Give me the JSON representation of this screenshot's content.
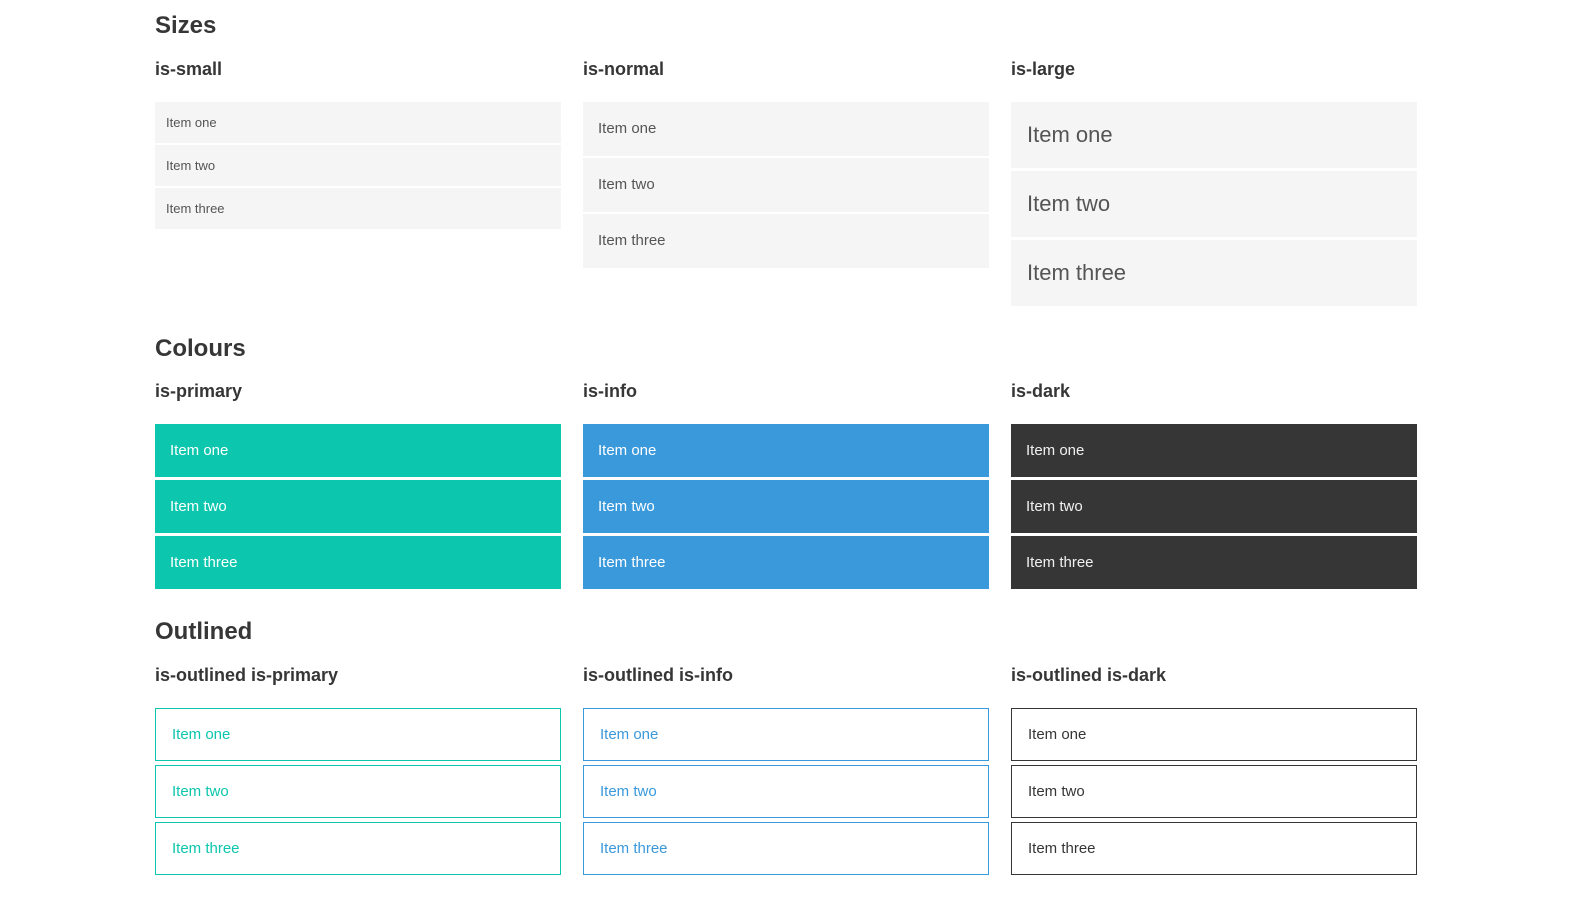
{
  "colors": {
    "primary": "#0cc6ad",
    "info": "#3a99db",
    "dark": "#363636",
    "item_background_light": "#f5f5f5",
    "item_text_gray": "#555555",
    "heading_text": "#363636",
    "item_text_on_color": "#ffffff",
    "page_background": "#ffffff"
  },
  "sections": [
    {
      "title": "Sizes",
      "groups": [
        {
          "label": "is-small",
          "items": [
            "Item one",
            "Item two",
            "Item three"
          ]
        },
        {
          "label": "is-normal",
          "items": [
            "Item one",
            "Item two",
            "Item three"
          ]
        },
        {
          "label": "is-large",
          "items": [
            "Item one",
            "Item two",
            "Item three"
          ]
        }
      ]
    },
    {
      "title": "Colours",
      "groups": [
        {
          "label": "is-primary",
          "items": [
            "Item one",
            "Item two",
            "Item three"
          ]
        },
        {
          "label": "is-info",
          "items": [
            "Item one",
            "Item two",
            "Item three"
          ]
        },
        {
          "label": "is-dark",
          "items": [
            "Item one",
            "Item two",
            "Item three"
          ]
        }
      ]
    },
    {
      "title": "Outlined",
      "groups": [
        {
          "label": "is-outlined is-primary",
          "items": [
            "Item one",
            "Item two",
            "Item three"
          ]
        },
        {
          "label": "is-outlined is-info",
          "items": [
            "Item one",
            "Item two",
            "Item three"
          ]
        },
        {
          "label": "is-outlined is-dark",
          "items": [
            "Item one",
            "Item two",
            "Item three"
          ]
        }
      ]
    }
  ]
}
